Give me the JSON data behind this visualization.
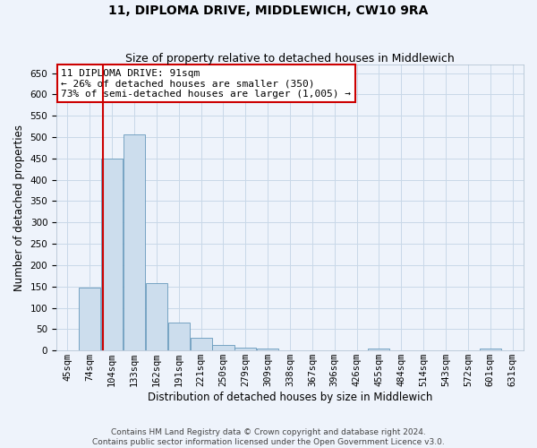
{
  "title": "11, DIPLOMA DRIVE, MIDDLEWICH, CW10 9RA",
  "subtitle": "Size of property relative to detached houses in Middlewich",
  "xlabel": "Distribution of detached houses by size in Middlewich",
  "ylabel": "Number of detached properties",
  "footer1": "Contains HM Land Registry data © Crown copyright and database right 2024.",
  "footer2": "Contains public sector information licensed under the Open Government Licence v3.0.",
  "annotation_line1": "11 DIPLOMA DRIVE: 91sqm",
  "annotation_line2": "← 26% of detached houses are smaller (350)",
  "annotation_line3": "73% of semi-detached houses are larger (1,005) →",
  "bar_color": "#ccdded",
  "bar_edge_color": "#6699bb",
  "grid_color": "#c8d8e8",
  "red_line_x": 1.58,
  "categories": [
    "45sqm",
    "74sqm",
    "104sqm",
    "133sqm",
    "162sqm",
    "191sqm",
    "221sqm",
    "250sqm",
    "279sqm",
    "309sqm",
    "338sqm",
    "367sqm",
    "396sqm",
    "426sqm",
    "455sqm",
    "484sqm",
    "514sqm",
    "543sqm",
    "572sqm",
    "601sqm",
    "631sqm"
  ],
  "values": [
    0,
    147,
    450,
    507,
    158,
    65,
    30,
    12,
    7,
    5,
    0,
    0,
    0,
    0,
    5,
    0,
    0,
    0,
    0,
    5,
    0
  ],
  "ylim": [
    0,
    670
  ],
  "yticks": [
    0,
    50,
    100,
    150,
    200,
    250,
    300,
    350,
    400,
    450,
    500,
    550,
    600,
    650
  ],
  "background_color": "#eef3fb",
  "annotation_box_color": "#ffffff",
  "annotation_box_edge": "#cc0000",
  "red_line_color": "#cc0000",
  "title_fontsize": 10,
  "subtitle_fontsize": 9,
  "annotation_fontsize": 8,
  "label_fontsize": 8.5,
  "tick_fontsize": 7.5,
  "footer_fontsize": 6.5
}
